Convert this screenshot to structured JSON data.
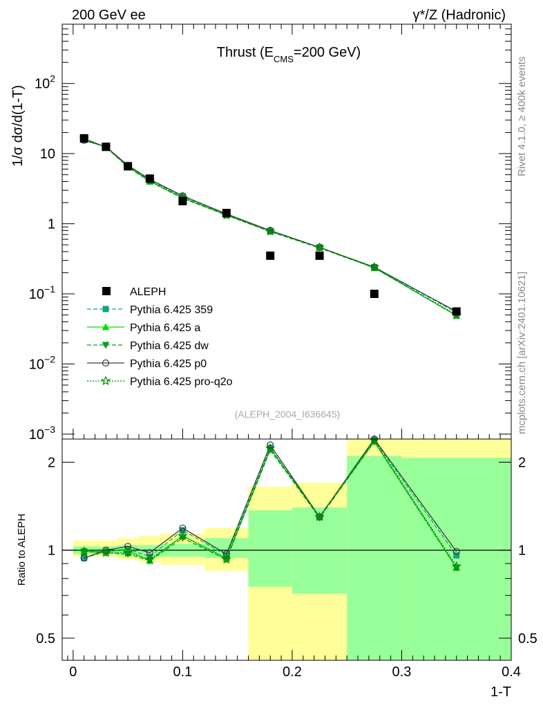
{
  "header": {
    "left": "200 GeV ee",
    "right": "γ*/Z (Hadronic)"
  },
  "side_texts": {
    "rivet": "Rivet 4.1.0, ≥ 400k events",
    "mcplots": "mcplots.cern.ch [arXiv:2401.10621]"
  },
  "chart_data": [
    {
      "type": "line",
      "panel": "main",
      "title_parts": {
        "pre": "Thrust (E",
        "sub": "CMS",
        "post": "=200 GeV)"
      },
      "ylabel": "1/σ  dσ/d(1-T)",
      "yscale": "log",
      "ylim": [
        0.00085,
        700
      ],
      "xlim": [
        -0.01,
        0.4
      ],
      "y_ticks": [
        {
          "value": 0.001,
          "base": "10",
          "exp": "−3"
        },
        {
          "value": 0.01,
          "base": "10",
          "exp": "−2"
        },
        {
          "value": 0.1,
          "base": "10",
          "exp": "−1"
        },
        {
          "value": 1,
          "base": "1",
          "exp": ""
        },
        {
          "value": 10,
          "base": "10",
          "exp": ""
        },
        {
          "value": 100,
          "base": "10",
          "exp": "2"
        }
      ],
      "reference_label": "(ALEPH_2004_I636645)",
      "legend_position": "bottom-left",
      "data": {
        "name": "ALEPH",
        "x": [
          0.01,
          0.03,
          0.05,
          0.07,
          0.1,
          0.14,
          0.18,
          0.225,
          0.275,
          0.35
        ],
        "y": [
          16.5,
          12.5,
          6.6,
          4.4,
          2.1,
          1.42,
          0.35,
          0.35,
          0.1,
          0.056
        ]
      },
      "series": [
        {
          "name": "Pythia 6.425 359",
          "color": "#16a37f",
          "dash": "6,3",
          "marker": "square",
          "y": [
            15.6,
            12.4,
            6.7,
            4.2,
            2.45,
            1.36,
            0.79,
            0.46,
            0.24,
            0.054
          ]
        },
        {
          "name": "Pythia 6.425 a",
          "color": "#00e000",
          "dash": "",
          "marker": "triangle-up",
          "y": [
            16.5,
            12.4,
            6.6,
            4.0,
            2.35,
            1.34,
            0.79,
            0.46,
            0.235,
            0.049
          ]
        },
        {
          "name": "Pythia 6.425 dw",
          "color": "#00a020",
          "dash": "6,3",
          "marker": "triangle-down",
          "y": [
            16.4,
            12.3,
            6.4,
            4.0,
            2.3,
            1.32,
            0.77,
            0.45,
            0.235,
            0.049
          ]
        },
        {
          "name": "Pythia 6.425 p0",
          "color": "#3a3a3a",
          "dash": "",
          "marker": "circle-open",
          "y": [
            15.5,
            12.5,
            6.8,
            4.3,
            2.5,
            1.38,
            0.8,
            0.46,
            0.24,
            0.056
          ]
        },
        {
          "name": "Pythia 6.425 pro-q2o",
          "color": "#008800",
          "dash": "2,2",
          "marker": "star-open",
          "y": [
            16.3,
            12.3,
            6.5,
            4.1,
            2.35,
            1.32,
            0.78,
            0.46,
            0.24,
            0.05
          ]
        }
      ]
    },
    {
      "type": "line",
      "panel": "ratio",
      "ylabel": "Ratio to ALEPH",
      "xlabel": "1-T",
      "yscale": "log",
      "ylim": [
        0.42,
        2.4
      ],
      "xlim": [
        -0.01,
        0.4
      ],
      "y_ticks": [
        {
          "value": 0.5,
          "label": "0.5"
        },
        {
          "value": 1,
          "label": "1"
        },
        {
          "value": 2,
          "label": "2"
        }
      ],
      "x_ticks": [
        {
          "value": 0,
          "label": "0"
        },
        {
          "value": 0.1,
          "label": "0.1"
        },
        {
          "value": 0.2,
          "label": "0.2"
        },
        {
          "value": 0.3,
          "label": "0.3"
        },
        {
          "value": 0.4,
          "label": "0.4"
        }
      ],
      "error_bands": [
        {
          "x0": 0.0,
          "x1": 0.02,
          "stat": [
            0.97,
            1.03
          ],
          "total": [
            0.95,
            1.08
          ]
        },
        {
          "x0": 0.02,
          "x1": 0.04,
          "stat": [
            0.97,
            1.03
          ],
          "total": [
            0.95,
            1.08
          ]
        },
        {
          "x0": 0.04,
          "x1": 0.06,
          "stat": [
            0.96,
            1.04
          ],
          "total": [
            0.93,
            1.1
          ]
        },
        {
          "x0": 0.06,
          "x1": 0.08,
          "stat": [
            0.95,
            1.04
          ],
          "total": [
            0.91,
            1.12
          ]
        },
        {
          "x0": 0.08,
          "x1": 0.12,
          "stat": [
            0.95,
            1.05
          ],
          "total": [
            0.89,
            1.14
          ]
        },
        {
          "x0": 0.12,
          "x1": 0.16,
          "stat": [
            0.94,
            1.1
          ],
          "total": [
            0.85,
            1.19
          ]
        },
        {
          "x0": 0.16,
          "x1": 0.2,
          "stat": [
            0.75,
            1.37
          ],
          "total": [
            0.37,
            1.65
          ]
        },
        {
          "x0": 0.2,
          "x1": 0.25,
          "stat": [
            0.71,
            1.4
          ],
          "total": [
            0.37,
            1.7
          ]
        },
        {
          "x0": 0.25,
          "x1": 0.3,
          "stat": [
            0.35,
            2.1
          ],
          "total": [
            0.35,
            2.4
          ]
        },
        {
          "x0": 0.3,
          "x1": 0.4,
          "stat": [
            0.35,
            2.07
          ],
          "total": [
            0.35,
            2.4
          ]
        }
      ],
      "x": [
        0.01,
        0.03,
        0.05,
        0.07,
        0.1,
        0.14,
        0.18,
        0.225,
        0.275,
        0.35
      ],
      "series": [
        {
          "name": "Pythia 6.425 359",
          "color": "#16a37f",
          "dash": "6,3",
          "marker": "square",
          "y": [
            0.94,
            0.99,
            1.01,
            0.95,
            1.17,
            0.96,
            2.24,
            1.3,
            2.38,
            0.96
          ]
        },
        {
          "name": "Pythia 6.425 a",
          "color": "#00e000",
          "dash": "",
          "marker": "triangle-up",
          "y": [
            0.99,
            0.99,
            1.0,
            0.92,
            1.12,
            0.94,
            2.22,
            1.3,
            2.35,
            0.87
          ]
        },
        {
          "name": "Pythia 6.425 dw",
          "color": "#00a020",
          "dash": "6,3",
          "marker": "triangle-down",
          "y": [
            0.99,
            0.98,
            0.97,
            0.92,
            1.1,
            0.93,
            2.2,
            1.29,
            2.35,
            0.87
          ]
        },
        {
          "name": "Pythia 6.425 p0",
          "color": "#3a3a3a",
          "dash": "",
          "marker": "circle-open",
          "y": [
            0.94,
            1.0,
            1.03,
            0.98,
            1.19,
            0.97,
            2.29,
            1.3,
            2.4,
            0.99
          ]
        },
        {
          "name": "Pythia 6.425 pro-q2o",
          "color": "#008800",
          "dash": "2,2",
          "marker": "star-open",
          "y": [
            0.99,
            0.98,
            0.98,
            0.93,
            1.12,
            0.93,
            2.23,
            1.3,
            2.38,
            0.88
          ]
        }
      ]
    }
  ]
}
